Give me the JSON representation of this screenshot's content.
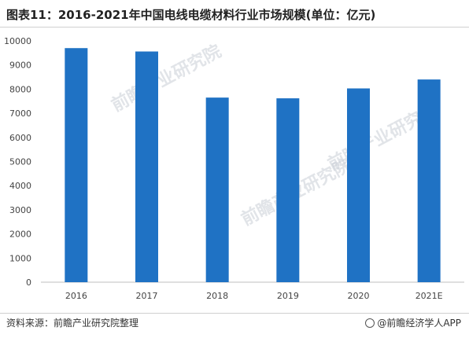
{
  "title": "图表11：2016-2021年中国电线电缆材料行业市场规模(单位：亿元)",
  "source": "资料来源：前瞻产业研究院整理",
  "brand": "@前瞻经济学人APP",
  "watermark_text": "前瞻产业研究院",
  "colors": {
    "bar": "#1f72c4",
    "axis": "#bfbfbf"
  },
  "chart_data": {
    "type": "bar",
    "title": "图表11：2016-2021年中国电线电缆材料行业市场规模(单位：亿元)",
    "categories": [
      "2016",
      "2017",
      "2018",
      "2019",
      "2020",
      "2021E"
    ],
    "values": [
      9700,
      9560,
      7650,
      7620,
      8030,
      8400
    ],
    "ylim": [
      0,
      10000
    ],
    "yticks": [
      0,
      1000,
      2000,
      3000,
      4000,
      5000,
      6000,
      7000,
      8000,
      9000,
      10000
    ],
    "xlabel": "",
    "ylabel": "",
    "grid": false,
    "legend": "none"
  }
}
